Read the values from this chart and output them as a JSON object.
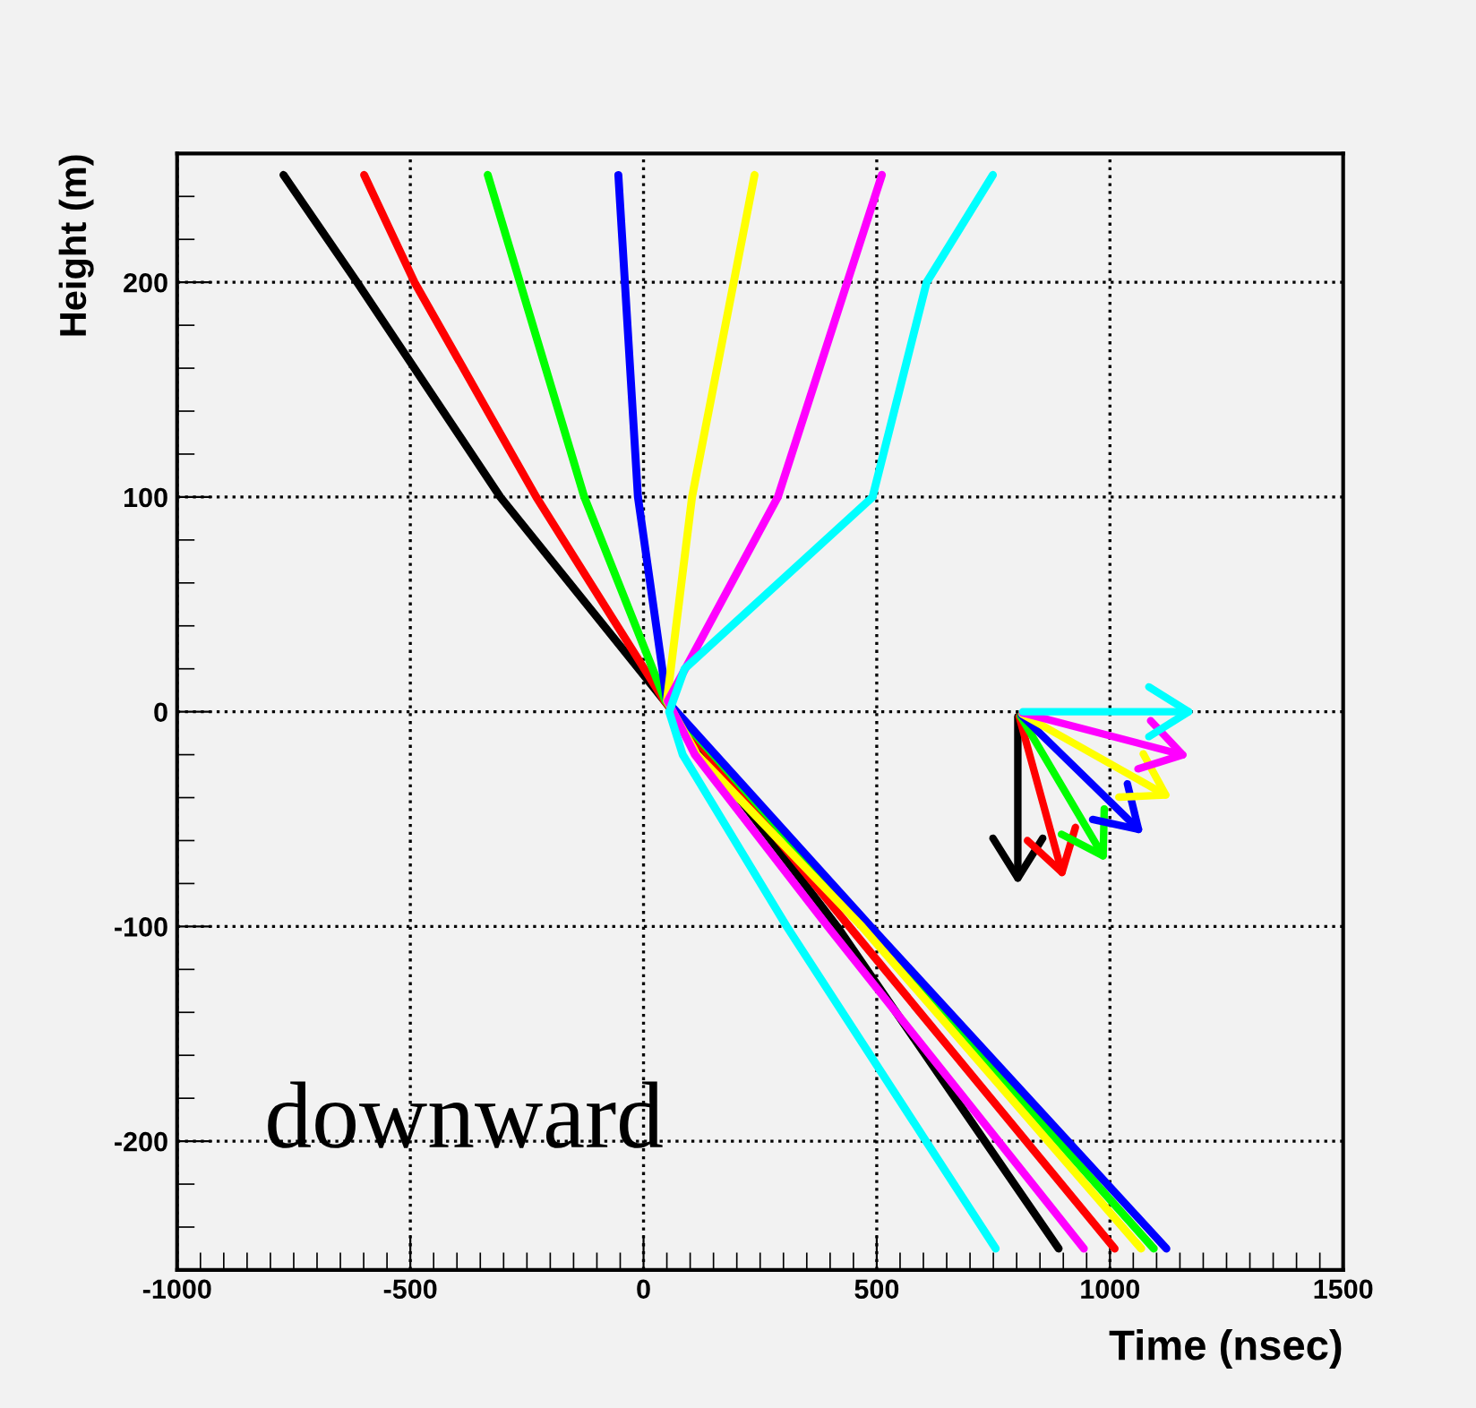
{
  "chart_data": {
    "type": "line",
    "xlabel": "Time (nsec)",
    "ylabel": "Height (m)",
    "xlim": [
      -1000,
      1500
    ],
    "ylim": [
      -260,
      260
    ],
    "xticks": [
      -1000,
      -500,
      0,
      500,
      1000,
      1500
    ],
    "yticks": [
      -200,
      -100,
      0,
      100,
      200
    ],
    "grid": true,
    "marker": "none",
    "line_style": "solid",
    "annotations": [
      "downward"
    ],
    "series": [
      {
        "color": "#000000",
        "x": [
          -772,
          -614,
          -307,
          45,
          415,
          890
        ],
        "values": [
          250,
          200,
          100,
          5,
          -100,
          -250
        ]
      },
      {
        "color": "#ff0000",
        "x": [
          -599,
          -491,
          -230,
          45,
          441,
          1010
        ],
        "values": [
          250,
          200,
          100,
          5,
          -100,
          -250
        ]
      },
      {
        "color": "#00ff00",
        "x": [
          -334,
          -127,
          47,
          478,
          1094
        ],
        "values": [
          250,
          100,
          5,
          -100,
          -250
        ]
      },
      {
        "color": "#0000ff",
        "x": [
          -54,
          -12,
          50,
          487,
          1121
        ],
        "values": [
          250,
          100,
          5,
          -100,
          -250
        ]
      },
      {
        "color": "#ffff00",
        "x": [
          238,
          104,
          50,
          115,
          468,
          1067
        ],
        "values": [
          250,
          100,
          5,
          -20,
          -100,
          -250
        ]
      },
      {
        "color": "#ff00ff",
        "x": [
          511,
          288,
          52,
          110,
          395,
          944
        ],
        "values": [
          250,
          100,
          5,
          -20,
          -100,
          -250
        ]
      },
      {
        "color": "#00ffff",
        "x": [
          749,
          607,
          491,
          88,
          55,
          84,
          307,
          755
        ],
        "values": [
          250,
          200,
          100,
          20,
          0,
          -20,
          -100,
          -250
        ]
      }
    ]
  }
}
